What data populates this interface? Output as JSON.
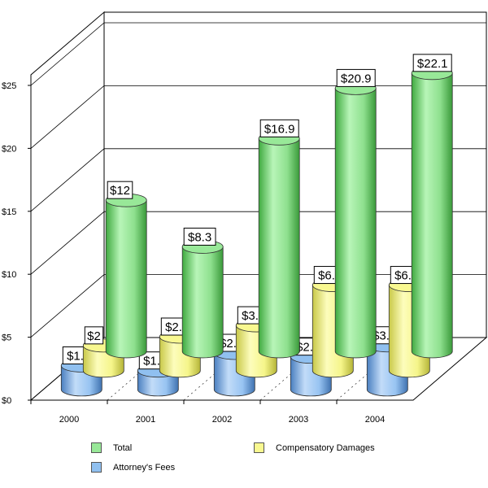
{
  "chart_data": {
    "type": "bar",
    "style": "3d-cylinder",
    "categories": [
      "2000",
      "2001",
      "2002",
      "2003",
      "2004"
    ],
    "series": [
      {
        "name": "Total",
        "values": [
          12,
          8.3,
          16.9,
          20.9,
          22.1
        ],
        "labels": [
          "$12",
          "$8.3",
          "$16.9",
          "$20.9",
          "$22.1"
        ],
        "color": "#98e898"
      },
      {
        "name": "Compensatory Damages",
        "values": [
          2,
          2.7,
          3.6,
          6.8,
          6.8
        ],
        "labels": [
          "$2",
          "$2.7",
          "$3.6",
          "$6.8",
          "$6.8"
        ],
        "color": "#f8f890"
      },
      {
        "name": "Attorney's Fees",
        "values": [
          1.9,
          1.5,
          2.9,
          2.6,
          3.5
        ],
        "labels": [
          "$1.9",
          "$1.5",
          "$2.9",
          "$2.6",
          "$3.5"
        ],
        "color": "#90c0f0"
      }
    ],
    "y_ticks": [
      "$0",
      "$5",
      "$10",
      "$15",
      "$20",
      "$25"
    ],
    "ylim": [
      0,
      25
    ],
    "title": "",
    "xlabel": "",
    "ylabel": "",
    "grid": true,
    "legend_position": "bottom"
  },
  "legend": {
    "items": [
      {
        "label": "Total",
        "color": "#98e898"
      },
      {
        "label": "Compensatory Damages",
        "color": "#f8f890"
      },
      {
        "label": "Attorney's Fees",
        "color": "#90c0f0"
      }
    ]
  }
}
